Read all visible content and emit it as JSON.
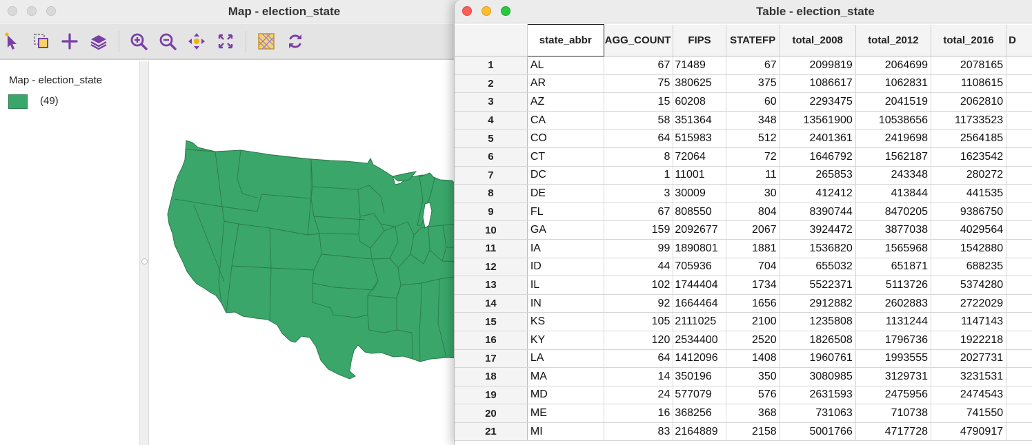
{
  "map_window": {
    "title": "Map - election_state",
    "toolbar_icons": [
      "select-pointer-icon",
      "select-mode-icon",
      "add-layer-icon",
      "layers-icon",
      "zoom-in-icon",
      "zoom-out-icon",
      "pan-icon",
      "full-extent-icon",
      "basemap-icon",
      "refresh-icon"
    ],
    "legend": {
      "title": "Map - election_state",
      "count_label": "(49)",
      "swatch_color": "#3aa66a"
    },
    "fill_color": "#3aa66a"
  },
  "table_window": {
    "title": "Table - election_state",
    "columns": [
      "state_abbr",
      "AGG_COUNT",
      "FIPS",
      "STATEFP",
      "total_2008",
      "total_2012",
      "total_2016",
      "D"
    ],
    "rows": [
      [
        "1",
        "AL",
        "67",
        "71489",
        "67",
        "2099819",
        "2064699",
        "2078165"
      ],
      [
        "2",
        "AR",
        "75",
        "380625",
        "375",
        "1086617",
        "1062831",
        "1108615"
      ],
      [
        "3",
        "AZ",
        "15",
        "60208",
        "60",
        "2293475",
        "2041519",
        "2062810"
      ],
      [
        "4",
        "CA",
        "58",
        "351364",
        "348",
        "13561900",
        "10538656",
        "11733523"
      ],
      [
        "5",
        "CO",
        "64",
        "515983",
        "512",
        "2401361",
        "2419698",
        "2564185"
      ],
      [
        "6",
        "CT",
        "8",
        "72064",
        "72",
        "1646792",
        "1562187",
        "1623542"
      ],
      [
        "7",
        "DC",
        "1",
        "11001",
        "11",
        "265853",
        "243348",
        "280272"
      ],
      [
        "8",
        "DE",
        "3",
        "30009",
        "30",
        "412412",
        "413844",
        "441535"
      ],
      [
        "9",
        "FL",
        "67",
        "808550",
        "804",
        "8390744",
        "8470205",
        "9386750"
      ],
      [
        "10",
        "GA",
        "159",
        "2092677",
        "2067",
        "3924472",
        "3877038",
        "4029564"
      ],
      [
        "11",
        "IA",
        "99",
        "1890801",
        "1881",
        "1536820",
        "1565968",
        "1542880"
      ],
      [
        "12",
        "ID",
        "44",
        "705936",
        "704",
        "655032",
        "651871",
        "688235"
      ],
      [
        "13",
        "IL",
        "102",
        "1744404",
        "1734",
        "5522371",
        "5113726",
        "5374280"
      ],
      [
        "14",
        "IN",
        "92",
        "1664464",
        "1656",
        "2912882",
        "2602883",
        "2722029"
      ],
      [
        "15",
        "KS",
        "105",
        "2111025",
        "2100",
        "1235808",
        "1131244",
        "1147143"
      ],
      [
        "16",
        "KY",
        "120",
        "2534400",
        "2520",
        "1826508",
        "1796736",
        "1922218"
      ],
      [
        "17",
        "LA",
        "64",
        "1412096",
        "1408",
        "1960761",
        "1993555",
        "2027731"
      ],
      [
        "18",
        "MA",
        "14",
        "350196",
        "350",
        "3080985",
        "3129731",
        "3231531"
      ],
      [
        "19",
        "MD",
        "24",
        "577079",
        "576",
        "2631593",
        "2475956",
        "2474543"
      ],
      [
        "20",
        "ME",
        "16",
        "368256",
        "368",
        "731063",
        "710738",
        "741550"
      ],
      [
        "21",
        "MI",
        "83",
        "2164889",
        "2158",
        "5001766",
        "4717728",
        "4790917"
      ]
    ]
  }
}
